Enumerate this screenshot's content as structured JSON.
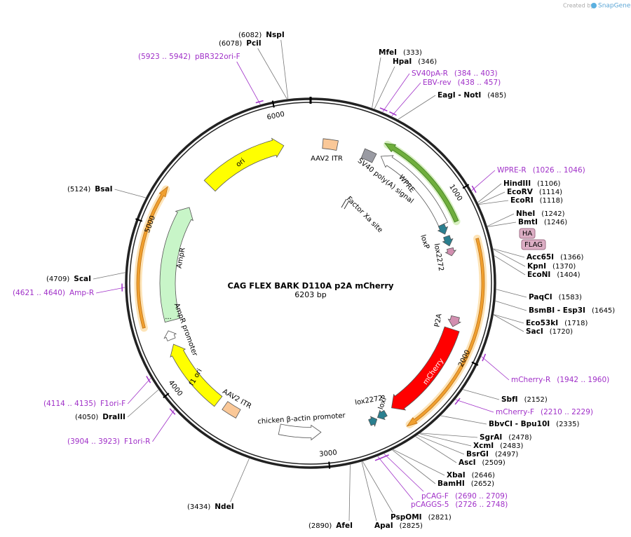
{
  "header": {
    "credit": "Created by",
    "brand": "SnapGene"
  },
  "plasmid": {
    "name": "CAG FLEX BARK D110A p2A mCherry",
    "length": "6203 bp",
    "ruler": [
      "1000",
      "2000",
      "3000",
      "4000",
      "5000",
      "6000"
    ]
  },
  "features": [
    "ori",
    "AAV2 ITR",
    "SV40 poly(A) signal",
    "WPRE",
    "Factor Xa site",
    "loxP",
    "lox2272",
    "HA",
    "FLAG",
    "P2A",
    "mCherry",
    "lox2272",
    "loxP",
    "chicken β-actin promoter",
    "AAV2 ITR",
    "f1 ori",
    "AmpR promoter",
    "AmpR",
    "..."
  ],
  "sites": [
    {
      "name": "NspI",
      "position": "(6082)"
    },
    {
      "name": "PciI",
      "position": "(6078)"
    },
    {
      "name": "MfeI",
      "position": "(333)"
    },
    {
      "name": "HpaI",
      "position": "(346)"
    },
    {
      "name": "EagI - NotI",
      "position": "(485)"
    },
    {
      "name": "HindIII",
      "position": "(1106)"
    },
    {
      "name": "EcoRV",
      "position": "(1114)"
    },
    {
      "name": "EcoRI",
      "position": "(1118)"
    },
    {
      "name": "NheI",
      "position": "(1242)"
    },
    {
      "name": "BmtI",
      "position": "(1246)"
    },
    {
      "name": "Acc65I",
      "position": "(1366)"
    },
    {
      "name": "KpnI",
      "position": "(1370)"
    },
    {
      "name": "EcoNI",
      "position": "(1404)"
    },
    {
      "name": "PaqCI",
      "position": "(1583)"
    },
    {
      "name": "BsmBI - Esp3I",
      "position": "(1645)"
    },
    {
      "name": "Eco53kI",
      "position": "(1718)"
    },
    {
      "name": "SacI",
      "position": "(1720)"
    },
    {
      "name": "SbfI",
      "position": "(2152)"
    },
    {
      "name": "BbvCI - Bpu10I",
      "position": "(2335)"
    },
    {
      "name": "SgrAI",
      "position": "(2478)"
    },
    {
      "name": "XcmI",
      "position": "(2483)"
    },
    {
      "name": "BsrGI",
      "position": "(2497)"
    },
    {
      "name": "AscI",
      "position": "(2509)"
    },
    {
      "name": "XbaI",
      "position": "(2646)"
    },
    {
      "name": "BamHI",
      "position": "(2652)"
    },
    {
      "name": "PspOMI",
      "position": "(2821)"
    },
    {
      "name": "ApaI",
      "position": "(2825)"
    },
    {
      "name": "AfeI",
      "position": "(2890)"
    },
    {
      "name": "NdeI",
      "position": "(3434)"
    },
    {
      "name": "DraIII",
      "position": "(4050)"
    },
    {
      "name": "ScaI",
      "position": "(4709)"
    },
    {
      "name": "BsaI",
      "position": "(5124)"
    }
  ],
  "primers": [
    {
      "name": "pBR322ori-F",
      "range": "(5923 .. 5942)"
    },
    {
      "name": "SV40pA-R",
      "range": "(384 .. 403)"
    },
    {
      "name": "EBV-rev",
      "range": "(438 .. 457)"
    },
    {
      "name": "WPRE-R",
      "range": "(1026 .. 1046)"
    },
    {
      "name": "mCherry-R",
      "range": "(1942 .. 1960)"
    },
    {
      "name": "mCherry-F",
      "range": "(2210 .. 2229)"
    },
    {
      "name": "pCAG-F",
      "range": "(2690 .. 2709)"
    },
    {
      "name": "pCAGGS-5",
      "range": "(2726 .. 2748)"
    },
    {
      "name": "F1ori-R",
      "range": "(3904 .. 3923)"
    },
    {
      "name": "F1ori-F",
      "range": "(4114 .. 4135)"
    },
    {
      "name": "Amp-R",
      "range": "(4621 .. 4640)"
    }
  ]
}
